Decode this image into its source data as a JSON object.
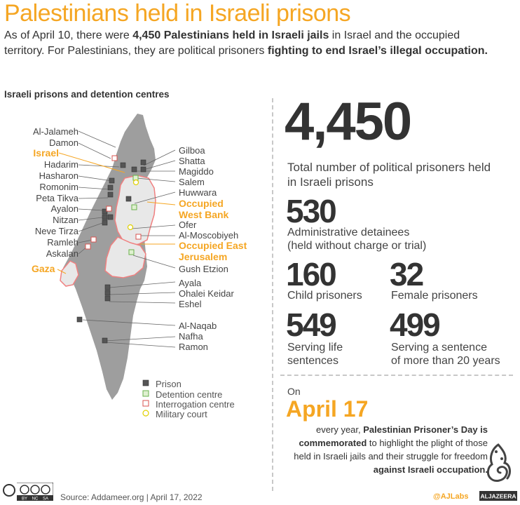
{
  "title": "Palestinians held in Israeli prisons",
  "intro": {
    "p1": "As of April 10, there were ",
    "b1": "4,450 Palestinians held in Israeli jails",
    "p2": " in Israel and the occupied territory. For Palestinians, they are political prisoners ",
    "b2": "fighting to end Israel’s illegal occupation."
  },
  "map_heading": "Israeli prisons and detention centres",
  "map": {
    "left_labels": [
      "Al-Jalameh",
      "Damon",
      "Hadarim",
      "Hasharon",
      "Romonim",
      "Peta Tikva",
      "Ayalon",
      "Nitzan",
      "Neve Tirza",
      "Ramleh",
      "Askalan"
    ],
    "right_labels": [
      "Gilboa",
      "Shatta",
      "Magiddo",
      "Salem",
      "Huwwara",
      "Ofer",
      "Al-Moscobiyeh",
      "Gush Etzion",
      "Ayala",
      "Ohalei Keidar",
      "Eshel",
      "Al-Naqab",
      "Nafha",
      "Ramon"
    ],
    "regions": {
      "israel": "Israel",
      "west_bank": [
        "Occupied",
        "West Bank"
      ],
      "east_jerusalem": [
        "Occupied East",
        "Jerusalem"
      ],
      "gaza": "Gaza"
    },
    "colors": {
      "land": "#9e9e9e",
      "territory": "#e8e8e8",
      "territory_border": "#f08080",
      "prison": "#555555",
      "detention": "#6ab04c",
      "interrogation": "#d9534f",
      "court": "#e0d000",
      "accent": "#f5a623"
    }
  },
  "legend": [
    {
      "label": "Prison",
      "type": "prison"
    },
    {
      "label": "Detention centre",
      "type": "detention"
    },
    {
      "label": "Interrogation centre",
      "type": "interrogation"
    },
    {
      "label": "Military court",
      "type": "court"
    }
  ],
  "stats": {
    "total": {
      "value": "4,450",
      "label": "Total number of political prisoners held in Israeli prisons"
    },
    "admin": {
      "value": "530",
      "label_1": "Administrative detainees",
      "label_2": "(held without charge or trial)"
    },
    "child": {
      "value": "160",
      "label": "Child prisoners"
    },
    "female": {
      "value": "32",
      "label": "Female prisoners"
    },
    "life": {
      "value": "549",
      "label_1": "Serving life",
      "label_2": "sentences"
    },
    "long": {
      "value": "499",
      "label_1": "Serving a sentence",
      "label_2": "of more than 20 years"
    }
  },
  "day": {
    "on": "On",
    "date": "April 17",
    "t1": "every year, ",
    "b1": "Palestinian Prisoner’s Day is commemorated",
    "t2": " to highlight the plight of those held in Israeli jails and their struggle for freedom ",
    "b2": "against Israeli occupation."
  },
  "footer": {
    "source": "Source: Addameer.org | April 17, 2022",
    "handle": "@AJLabs",
    "brand": "ALJAZEERA",
    "cc_labels": [
      "BY",
      "NC",
      "SA"
    ]
  }
}
